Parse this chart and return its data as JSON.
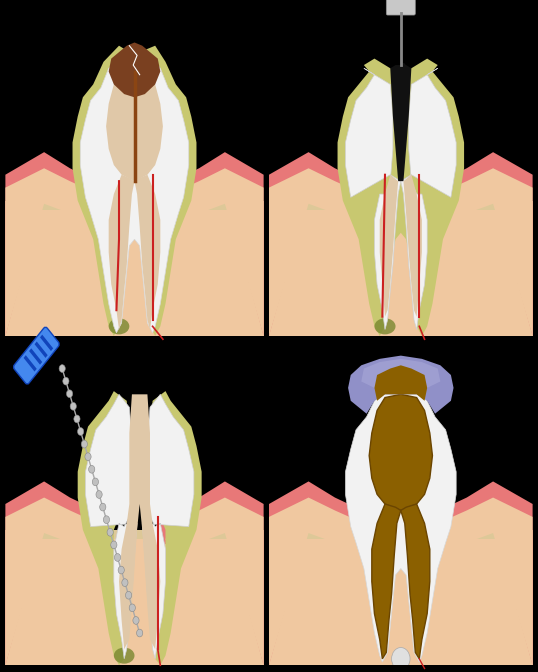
{
  "bg": "#000000",
  "bone_color": "#ddc898",
  "gum_pink": "#e87878",
  "gum_inner": "#f0c8a0",
  "tooth_white": "#f2f2f2",
  "tooth_outline": "#cccccc",
  "enamel_yellow": "#c8c870",
  "pulp_beige": "#e0c8a8",
  "cavity_brown": "#7a4020",
  "nerve_red": "#cc2020",
  "infection_green": "#7a8830",
  "fill_brown": "#8B6000",
  "crown_blue": "#9090c8",
  "crown_blue2": "#a8a8d8",
  "drill_dark": "#606060",
  "drill_light": "#c8c8c8",
  "drill_mid": "#909090",
  "file_blue": "#4488ee",
  "file_dark": "#1144bb",
  "wire_gray": "#aaaaaa",
  "wire_dark": "#888888",
  "black_ink": "#111111"
}
